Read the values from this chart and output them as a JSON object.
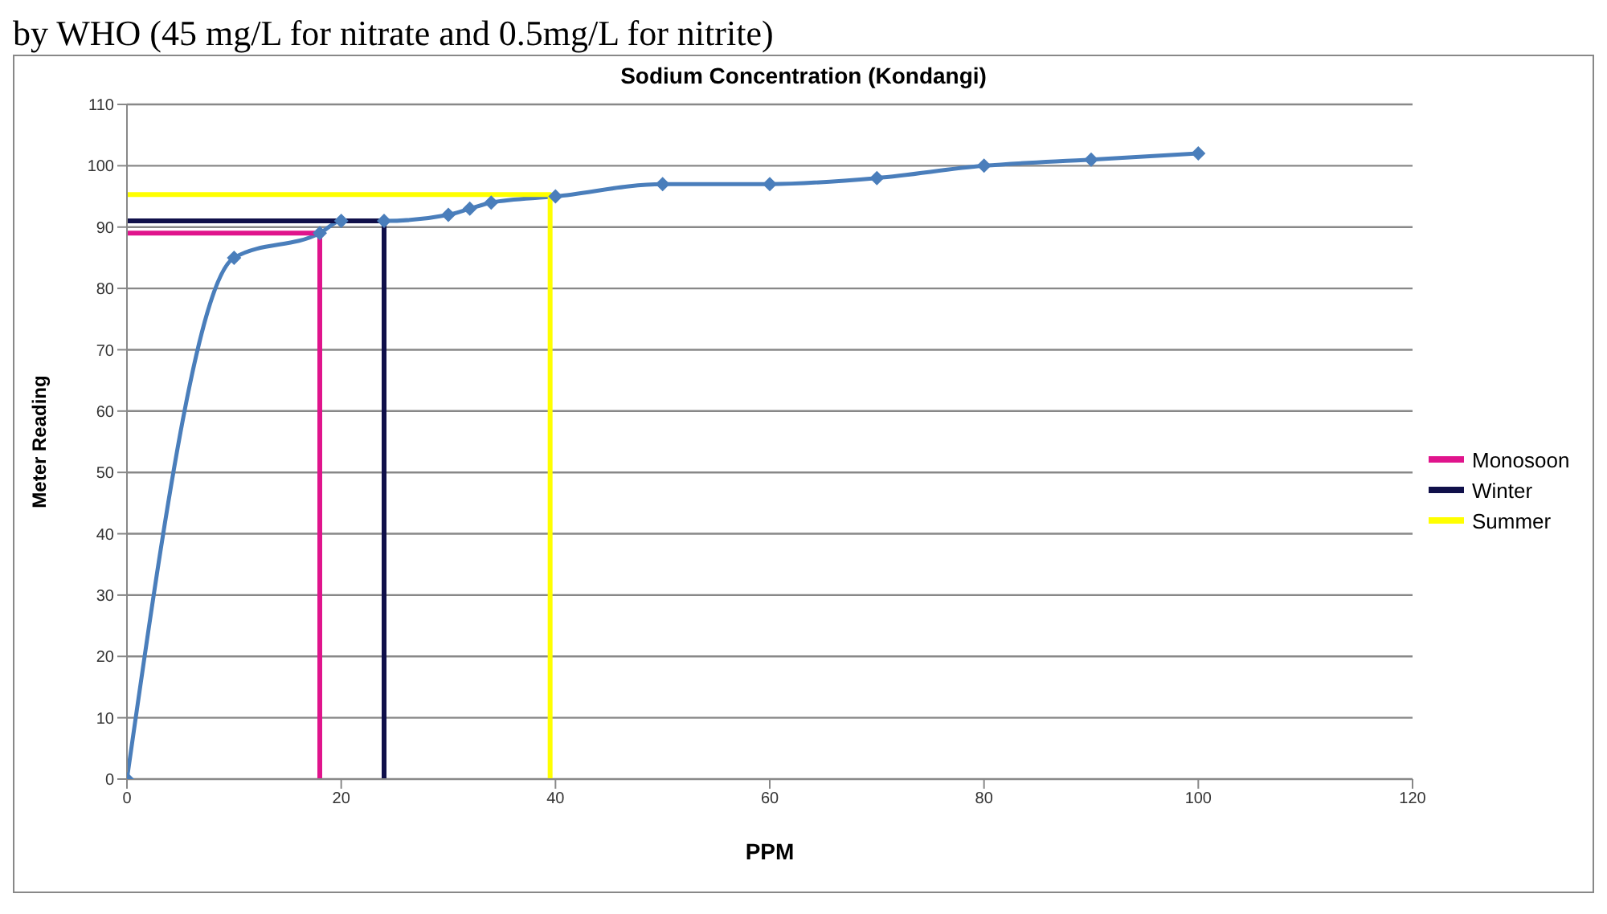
{
  "chart_data": {
    "type": "line",
    "title": "Sodium Concentration (Kondangi)",
    "xlabel": "PPM",
    "ylabel": "Meter Reading",
    "annotations": [
      "by WHO (45 mg/L for nitrate and 0.5mg/L for nitrite)"
    ],
    "xlim": [
      0,
      120
    ],
    "xticks": [
      0,
      20,
      40,
      60,
      80,
      100,
      120
    ],
    "ylim": [
      0,
      110
    ],
    "yticks": [
      0,
      10,
      20,
      30,
      40,
      50,
      60,
      70,
      80,
      90,
      100,
      110
    ],
    "grid": "y",
    "legend": "right",
    "marker": "diamond",
    "series": [
      {
        "color": "#4a7ebb",
        "x": [
          0,
          10,
          18,
          20,
          24,
          30,
          32,
          34,
          40,
          50,
          60,
          70,
          80,
          90,
          100
        ],
        "values": [
          0,
          85,
          89,
          91,
          91,
          92,
          93,
          94,
          95,
          97,
          97,
          98,
          100,
          101,
          102
        ]
      },
      {
        "name": "Monosoon",
        "color": "#e0148c",
        "marker": "none",
        "x": [
          0,
          18,
          18
        ],
        "values": [
          89,
          89,
          0
        ]
      },
      {
        "name": "Winter",
        "color": "#10104a",
        "marker": "none",
        "x": [
          0,
          24,
          24
        ],
        "values": [
          91,
          91,
          0
        ]
      },
      {
        "name": "Summer",
        "color": "#ffff00",
        "marker": "none",
        "x": [
          0,
          39.5,
          39.5
        ],
        "values": [
          95.3,
          95.3,
          0
        ]
      }
    ]
  }
}
